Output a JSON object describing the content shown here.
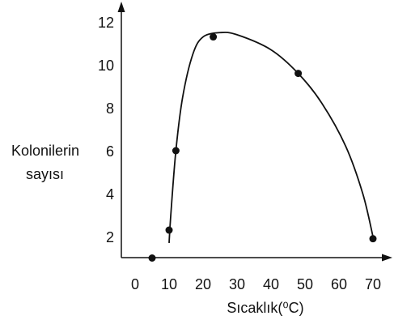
{
  "chart_data": {
    "type": "scatter",
    "title": "",
    "xlabel": "Sıcaklık(⁰C)",
    "ylabel": [
      "Kolonilerin",
      "sayısı"
    ],
    "x_ticks": [
      "0",
      "10",
      "20",
      "30",
      "40",
      "50",
      "60",
      "70"
    ],
    "y_ticks": [
      "2",
      "4",
      "6",
      "8",
      "10",
      "12"
    ],
    "xlim": [
      0,
      70
    ],
    "ylim": [
      1,
      12.5
    ],
    "grid": false,
    "points": [
      {
        "x": 5,
        "y": 1
      },
      {
        "x": 10,
        "y": 2.3
      },
      {
        "x": 12,
        "y": 6
      },
      {
        "x": 23,
        "y": 11.3
      },
      {
        "x": 48,
        "y": 9.6
      },
      {
        "x": 70,
        "y": 1.9
      }
    ],
    "curve": [
      {
        "x": 10,
        "y": 1.7
      },
      {
        "x": 10.5,
        "y": 3
      },
      {
        "x": 12,
        "y": 6
      },
      {
        "x": 14,
        "y": 8.5
      },
      {
        "x": 17,
        "y": 10.5
      },
      {
        "x": 20,
        "y": 11.3
      },
      {
        "x": 25,
        "y": 11.5
      },
      {
        "x": 30,
        "y": 11.4
      },
      {
        "x": 40,
        "y": 10.7
      },
      {
        "x": 48,
        "y": 9.6
      },
      {
        "x": 55,
        "y": 8.2
      },
      {
        "x": 62,
        "y": 6.2
      },
      {
        "x": 67,
        "y": 4
      },
      {
        "x": 70,
        "y": 2
      }
    ],
    "colors": {
      "ink": "#111111"
    }
  }
}
